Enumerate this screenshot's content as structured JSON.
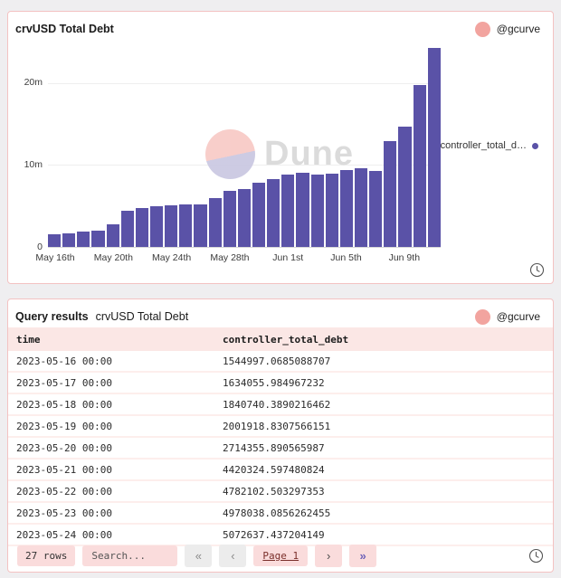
{
  "chart_panel": {
    "title": "crvUSD Total Debt",
    "author": "@gcurve",
    "legend_label": "controller_total_d…",
    "watermark": "Dune"
  },
  "chart_data": {
    "type": "bar",
    "title": "crvUSD Total Debt",
    "series_name": "controller_total_debt",
    "bar_color": "#5a52a7",
    "x": [
      "2023-05-16",
      "2023-05-17",
      "2023-05-18",
      "2023-05-19",
      "2023-05-20",
      "2023-05-21",
      "2023-05-22",
      "2023-05-23",
      "2023-05-24",
      "2023-05-25",
      "2023-05-26",
      "2023-05-27",
      "2023-05-28",
      "2023-05-29",
      "2023-05-30",
      "2023-05-31",
      "2023-06-01",
      "2023-06-02",
      "2023-06-03",
      "2023-06-04",
      "2023-06-05",
      "2023-06-06",
      "2023-06-07",
      "2023-06-08",
      "2023-06-09",
      "2023-06-10",
      "2023-06-11"
    ],
    "values": [
      1544997,
      1634055,
      1840740,
      2001918,
      2714355,
      4420324,
      4782102,
      4978038,
      5072637,
      5150000,
      5250000,
      6000000,
      6800000,
      7100000,
      7800000,
      8300000,
      8800000,
      9100000,
      8800000,
      9000000,
      9400000,
      9600000,
      9300000,
      12900000,
      14700000,
      19800000,
      24300000
    ],
    "x_tick_labels": [
      "May 16th",
      "May 20th",
      "May 24th",
      "May 28th",
      "Jun 1st",
      "Jun 5th",
      "Jun 9th"
    ],
    "x_tick_positions": [
      0,
      4,
      8,
      12,
      16,
      20,
      24
    ],
    "y_ticks": [
      {
        "label": "0",
        "value": 0
      },
      {
        "label": "10m",
        "value": 10000000
      },
      {
        "label": "20m",
        "value": 20000000
      }
    ],
    "ylim": [
      0,
      24750000
    ],
    "grid": true,
    "legend_position": "right"
  },
  "table_panel": {
    "header_bold": "Query results",
    "header_title": "crvUSD Total Debt",
    "author": "@gcurve",
    "columns": [
      "time",
      "controller_total_debt"
    ],
    "rows": [
      [
        "2023-05-16 00:00",
        "1544997.0685088707"
      ],
      [
        "2023-05-17 00:00",
        "1634055.984967232"
      ],
      [
        "2023-05-18 00:00",
        "1840740.3890216462"
      ],
      [
        "2023-05-19 00:00",
        "2001918.8307566151"
      ],
      [
        "2023-05-20 00:00",
        "2714355.890565987"
      ],
      [
        "2023-05-21 00:00",
        "4420324.597480824"
      ],
      [
        "2023-05-22 00:00",
        "4782102.503297353"
      ],
      [
        "2023-05-23 00:00",
        "4978038.0856262455"
      ],
      [
        "2023-05-24 00:00",
        "5072637.437204149"
      ]
    ],
    "footer": {
      "row_count": "27 rows",
      "search_placeholder": "Search...",
      "first": "«",
      "prev": "‹",
      "page_label": "Page 1",
      "next": "›",
      "last": "»"
    }
  },
  "colors": {
    "bar": "#5a52a7",
    "panel_border": "#f3c2c2",
    "table_header_bg": "#fbe7e5",
    "pill_bg": "#fadcdc",
    "avatar": "#f2a49f",
    "page_link_text": "#7a2f2a"
  }
}
